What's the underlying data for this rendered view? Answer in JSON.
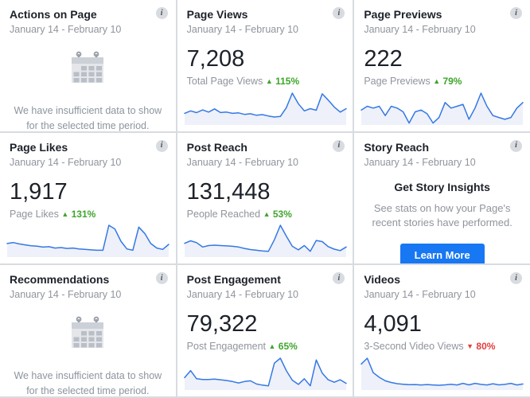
{
  "ui": {
    "info_glyph": "i"
  },
  "colors": {
    "chart_line": "#3578e5",
    "chart_fill": "#eef1f9",
    "positive": "#3fa52c",
    "negative": "#e23e3e",
    "accent_blue": "#1877f2",
    "divider": "#d8dbdf"
  },
  "cards": [
    {
      "type": "empty",
      "title": "Actions on Page",
      "date_range": "January 14 - February 10",
      "message": "We have insufficient data to show for the selected time period."
    },
    {
      "type": "chart",
      "title": "Page Views",
      "date_range": "January 14 - February 10",
      "value": "7,208",
      "metric_label": "Total Page Views",
      "delta": {
        "direction": "up",
        "arrow": "▲",
        "pct": "115%"
      },
      "chart_index": 0
    },
    {
      "type": "chart",
      "title": "Page Previews",
      "date_range": "January 14 - February 10",
      "value": "222",
      "metric_label": "Page Previews",
      "delta": {
        "direction": "up",
        "arrow": "▲",
        "pct": "79%"
      },
      "chart_index": 1
    },
    {
      "type": "chart",
      "title": "Page Likes",
      "date_range": "January 14 - February 10",
      "value": "1,917",
      "metric_label": "Page Likes",
      "delta": {
        "direction": "up",
        "arrow": "▲",
        "pct": "131%"
      },
      "chart_index": 2
    },
    {
      "type": "chart",
      "title": "Post Reach",
      "date_range": "January 14 - February 10",
      "value": "131,448",
      "metric_label": "People Reached",
      "delta": {
        "direction": "up",
        "arrow": "▲",
        "pct": "53%"
      },
      "chart_index": 3
    },
    {
      "type": "story",
      "title": "Story Reach",
      "date_range": "January 14 - February 10",
      "heading": "Get Story Insights",
      "description": "See stats on how your Page's recent stories have performed.",
      "button_label": "Learn More"
    },
    {
      "type": "empty",
      "title": "Recommendations",
      "date_range": "January 14 - February 10",
      "message": "We have insufficient data to show for the selected time period."
    },
    {
      "type": "chart",
      "title": "Post Engagement",
      "date_range": "January 14 - February 10",
      "value": "79,322",
      "metric_label": "Post Engagement",
      "delta": {
        "direction": "up",
        "arrow": "▲",
        "pct": "65%"
      },
      "chart_index": 4
    },
    {
      "type": "chart",
      "title": "Videos",
      "date_range": "January 14 - February 10",
      "value": "4,091",
      "metric_label": "3-Second Video Views",
      "delta": {
        "direction": "down",
        "arrow": "▼",
        "pct": "80%"
      },
      "chart_index": 5
    }
  ],
  "chart_data": [
    {
      "type": "area",
      "title": "Page Views sparkline",
      "total": 7208,
      "change_pct": "+115%",
      "x_range": "daily, January 14 - February 10",
      "y_units": "estimated daily page views (axes unlabeled)",
      "values": [
        235,
        285,
        250,
        305,
        262,
        325,
        252,
        262,
        235,
        245,
        215,
        228,
        196,
        210,
        182,
        162,
        172,
        350,
        645,
        430,
        285,
        330,
        298,
        630,
        505,
        365,
        262,
        330
      ]
    },
    {
      "type": "area",
      "title": "Page Previews sparkline",
      "total": 222,
      "change_pct": "+79%",
      "x_range": "daily, January 14 - February 10",
      "y_units": "estimated daily previews (axes unlabeled)",
      "values": [
        8,
        10,
        9,
        10,
        5,
        10,
        9,
        7,
        1,
        7,
        8,
        6,
        1,
        4,
        12,
        9,
        10,
        11,
        3,
        9,
        17,
        10,
        5,
        4,
        3,
        4,
        9,
        12
      ]
    },
    {
      "type": "area",
      "title": "Page Likes sparkline",
      "total": 1917,
      "change_pct": "+131%",
      "x_range": "daily, January 14 - February 10",
      "y_units": "estimated daily likes (axes unlabeled)",
      "values": [
        30,
        32,
        29,
        27,
        25,
        24,
        22,
        23,
        20,
        21,
        19,
        20,
        18,
        17,
        16,
        15,
        15,
        70,
        62,
        35,
        18,
        15,
        66,
        52,
        30,
        20,
        17,
        28
      ]
    },
    {
      "type": "area",
      "title": "Post Reach sparkline",
      "total": 131448,
      "change_pct": "+53%",
      "x_range": "daily, January 14 - February 10",
      "y_units": "estimated daily reach (axes unlabeled)",
      "values": [
        380,
        450,
        400,
        280,
        320,
        330,
        320,
        310,
        300,
        280,
        240,
        210,
        190,
        170,
        160,
        480,
        880,
        580,
        300,
        200,
        320,
        160,
        460,
        430,
        290,
        220,
        180,
        280
      ]
    },
    {
      "type": "area",
      "title": "Post Engagement sparkline",
      "total": 79322,
      "change_pct": "+65%",
      "x_range": "daily, January 14 - February 10",
      "y_units": "estimated daily engagement (axes unlabeled)",
      "values": [
        350,
        550,
        320,
        300,
        300,
        310,
        290,
        270,
        240,
        200,
        240,
        260,
        170,
        140,
        120,
        760,
        900,
        550,
        280,
        160,
        320,
        120,
        850,
        480,
        290,
        220,
        290,
        190
      ]
    },
    {
      "type": "area",
      "title": "Videos sparkline",
      "total": 4091,
      "change_pct": "-80%",
      "x_range": "daily, January 14 - February 10",
      "y_units": "estimated daily 3-second video views (axes unlabeled)",
      "values": [
        450,
        550,
        300,
        220,
        160,
        130,
        110,
        100,
        92,
        95,
        88,
        95,
        88,
        82,
        90,
        100,
        88,
        115,
        90,
        115,
        98,
        88,
        108,
        90,
        98,
        115,
        88,
        105
      ]
    }
  ]
}
